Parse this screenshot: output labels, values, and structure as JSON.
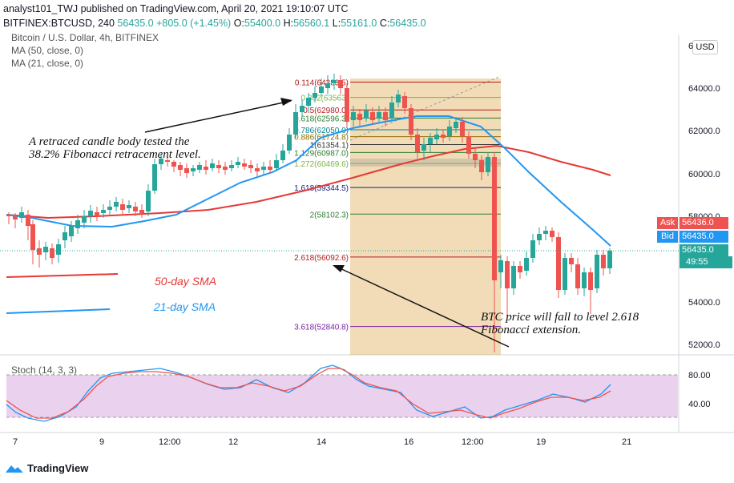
{
  "header": {
    "publisher": "analyst101_TWJ published on TradingView.com, April 20, 2021 19:10:07 UTC",
    "symbol": "BITFINEX:BTCUSD, 240",
    "last": "56435.0",
    "change": "+805.0 (+1.45%)",
    "o_label": "O:",
    "o_val": "55400.0",
    "h_label": "H:",
    "h_val": "56560.1",
    "l_label": "L:",
    "l_val": "55161.0",
    "c_label": "C:",
    "c_val": "56435.0"
  },
  "legend": {
    "title": "Bitcoin / U.S. Dollar, 4h, BITFINEX",
    "ma50": "MA (50, close, 0)",
    "ma21": "MA (21, close, 0)",
    "stoch": "Stoch (14, 3, 3)"
  },
  "currency": "USD",
  "price_axis": [
    "64000.0",
    "62000.0",
    "60000.0",
    "58000.0",
    "54000.0",
    "52000.0"
  ],
  "price_top_partial": "6",
  "stoch_axis": [
    "80.00",
    "40.00"
  ],
  "time_axis": [
    "7",
    "9",
    "12:00",
    "12",
    "14",
    "16",
    "12:00",
    "19",
    "21"
  ],
  "price_tags": {
    "ask_label": "Ask",
    "ask_val": "56436.0",
    "bid_label": "Bid",
    "bid_val": "56435.0",
    "last_val": "56435.0",
    "countdown": "49:55"
  },
  "fib_levels": [
    {
      "label": "0.114(64283.5)",
      "price": 64283.5,
      "color": "#b71c1c"
    },
    {
      "label": "0.382(63563)",
      "price": 63563,
      "color": "#7cb342"
    },
    {
      "label": "0.5(62980.0)",
      "price": 62980,
      "color": "#b71c1c"
    },
    {
      "label": "0.618(62596.3)",
      "price": 62596.3,
      "color": "#2e7d32"
    },
    {
      "label": "0.786(62050.0)",
      "price": 62050,
      "color": "#00838f"
    },
    {
      "label": "0.886(61724.8)",
      "price": 61724.8,
      "color": "#8d6e00"
    },
    {
      "label": "1(61354.1)",
      "price": 61354.1,
      "color": "#333333"
    },
    {
      "label": "1.129(60987.0)",
      "price": 60987,
      "color": "#2e7d32"
    },
    {
      "label": "1.272(60469.6)",
      "price": 60469.6,
      "color": "#7cb342"
    },
    {
      "label": "1.618(59344.5)",
      "price": 59344.5,
      "color": "#1a237e"
    },
    {
      "label": "2(58102.3)",
      "price": 58102.3,
      "color": "#2e7d32"
    },
    {
      "label": "2.618(56092.6)",
      "price": 56092.6,
      "color": "#b71c1c"
    },
    {
      "label": "3.618(52840.8)",
      "price": 52840.8,
      "color": "#7b1fa2"
    }
  ],
  "annotations": {
    "note1_line1": "A retraced candle body tested the",
    "note1_line2": "38.2% Fibonacci retracement level.",
    "note2_line1": "BTC price will fall to level 2.618",
    "note2_line2": "Fibonacci extension.",
    "sma50": "50-day SMA",
    "sma21": "21-day SMA"
  },
  "colors": {
    "up": "#26a69a",
    "down": "#ef5350",
    "ma50": "#e53935",
    "ma21": "#2196f3",
    "stoch_band": "#e1bee7",
    "stoch_k": "#2196f3",
    "stoch_d": "#ef5350",
    "ask": "#ef5350",
    "bid": "#2196f3",
    "last": "#26a69a"
  },
  "brand": "TradingView"
}
